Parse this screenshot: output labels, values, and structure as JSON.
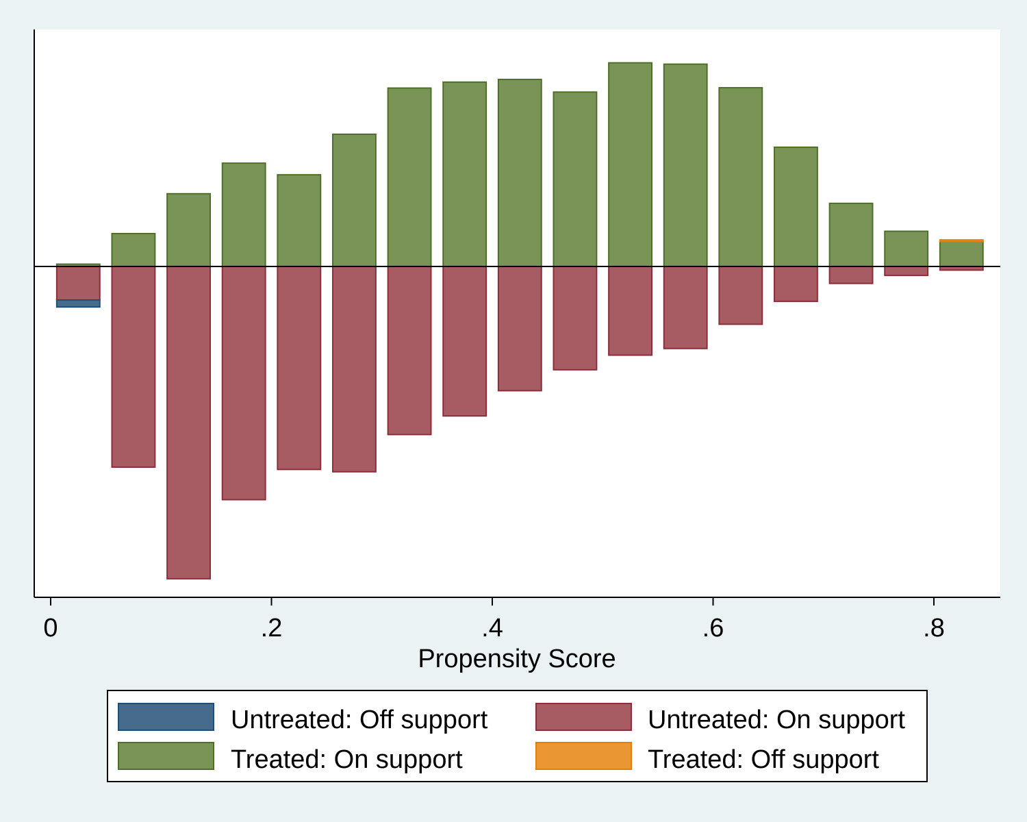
{
  "chart_data": {
    "type": "bar",
    "title": "",
    "xlabel": "Propensity Score",
    "ylabel": "",
    "xlim": [
      -0.015,
      0.86
    ],
    "ylim": [
      -1.0,
      0.66
    ],
    "xticks": [
      0,
      0.2,
      0.4,
      0.6,
      0.8
    ],
    "xtick_labels": [
      "0",
      ".2",
      ".4",
      ".6",
      ".8"
    ],
    "bin_centers": [
      0.025,
      0.075,
      0.125,
      0.175,
      0.225,
      0.275,
      0.325,
      0.375,
      0.425,
      0.475,
      0.525,
      0.575,
      0.625,
      0.675,
      0.725,
      0.775,
      0.825
    ],
    "bar_width": 0.039,
    "series": [
      {
        "name": "Treated: On support",
        "color": "#7a9458",
        "stroke": "#4f6e2a",
        "values": [
          0.007,
          0.099,
          0.219,
          0.311,
          0.276,
          0.398,
          0.537,
          0.555,
          0.563,
          0.525,
          0.613,
          0.609,
          0.538,
          0.359,
          0.19,
          0.106,
          0.075
        ],
        "base": 0
      },
      {
        "name": "Treated: Off support",
        "color": "#ea9633",
        "stroke": "#e07f0e",
        "values": [
          0,
          0,
          0,
          0,
          0,
          0,
          0,
          0,
          0,
          0,
          0,
          0,
          0,
          0,
          0,
          0,
          0.005
        ],
        "base": 0.075
      },
      {
        "name": "Untreated: On support",
        "color": "#a65c62",
        "stroke": "#8d2d3a",
        "values": [
          -0.101,
          -0.604,
          -0.94,
          -0.702,
          -0.611,
          -0.618,
          -0.506,
          -0.45,
          -0.374,
          -0.311,
          -0.267,
          -0.247,
          -0.174,
          -0.105,
          -0.051,
          -0.027,
          -0.011
        ],
        "base": 0
      },
      {
        "name": "Untreated: Off support",
        "color": "#476b8c",
        "stroke": "#1f4e79",
        "values": [
          -0.021,
          0,
          0,
          0,
          0,
          0,
          0,
          0,
          0,
          0,
          0,
          0,
          0,
          0,
          0,
          0,
          0
        ],
        "base": -0.101
      }
    ],
    "legend": {
      "placement": "bottom",
      "entries": [
        "Untreated: Off support",
        "Untreated: On support",
        "Treated: On support",
        "Treated: Off support"
      ]
    },
    "grid": false
  }
}
